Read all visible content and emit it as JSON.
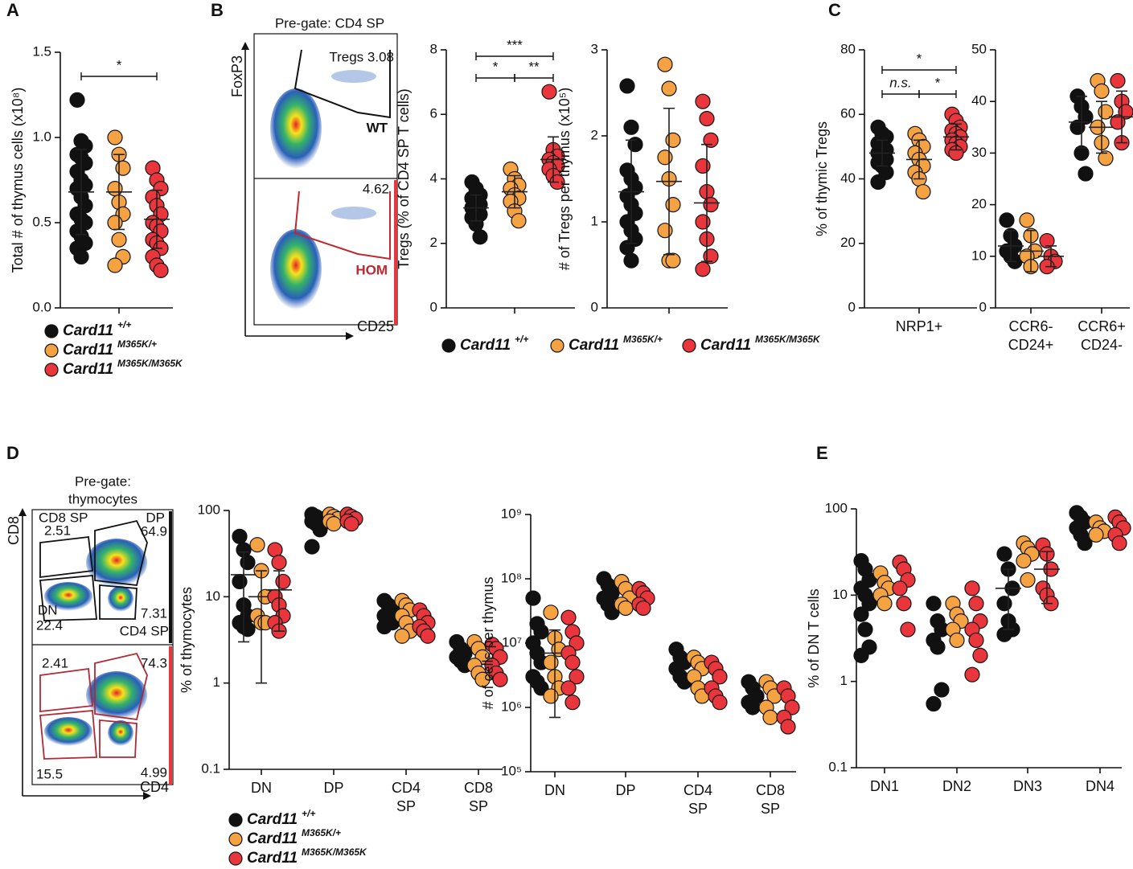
{
  "panels": [
    "A",
    "B",
    "C",
    "D",
    "E"
  ],
  "legend": [
    {
      "name": "Card11",
      "superscript": "+/+",
      "color": "#111111"
    },
    {
      "name": "Card11",
      "superscript": "M365K/+",
      "color": "#f5a242"
    },
    {
      "name": "Card11",
      "superscript": "M365K/M365K",
      "color": "#e8363c"
    }
  ],
  "flow_b": {
    "pregate": "Pre-gate: CD4 SP",
    "yaxis": "FoxP3",
    "xaxis": "CD25",
    "top_gate": "Tregs 3.08",
    "top_label": "WT",
    "bottom_gate": "4.62",
    "bottom_label": "HOM"
  },
  "flow_d": {
    "pregate": [
      "Pre-gate:",
      "thymocytes"
    ],
    "yaxis": "CD8",
    "xaxis": "CD4",
    "top": {
      "cd8_name": "CD8 SP",
      "cd8": "2.51",
      "dp_name": "DP",
      "dp": "64.9",
      "dn_name": "DN",
      "dn": "22.4",
      "cd4": "7.31",
      "cd4_name": "CD4 SP"
    },
    "bottom": {
      "cd8": "2.41",
      "dp": "74.3",
      "dn": "15.5",
      "cd4": "4.99"
    }
  },
  "chart_data": [
    {
      "type": "dot",
      "ylabel": "Total # of thymus cells (x10⁸)",
      "categories": [
        null
      ],
      "ylim": [
        0,
        1.5
      ],
      "yticks": [
        {
          "value": 0,
          "label": "0.0"
        },
        0.5,
        {
          "value": 1,
          "label": "1.0"
        },
        1.5
      ],
      "log": false,
      "series": [
        {
          "color": "#111111",
          "values": [
            [
              1.22,
              0.98,
              0.95,
              0.9,
              0.88,
              0.85,
              0.8,
              0.75,
              0.72,
              0.7,
              0.65,
              0.6,
              0.55,
              0.52,
              0.5,
              0.45,
              0.42,
              0.38,
              0.35,
              0.3
            ]
          ],
          "means": [
            0.68
          ],
          "errors": [
            0.25
          ]
        },
        {
          "color": "#f5a242",
          "values": [
            [
              1.0,
              0.9,
              0.82,
              0.7,
              0.62,
              0.55,
              0.5,
              0.4,
              0.3,
              0.25
            ]
          ],
          "means": [
            0.68
          ],
          "errors": [
            0.22
          ]
        },
        {
          "color": "#e8363c",
          "values": [
            [
              0.82,
              0.75,
              0.7,
              0.65,
              0.6,
              0.55,
              0.5,
              0.48,
              0.45,
              0.4,
              0.38,
              0.35,
              0.3,
              0.25,
              0.22
            ]
          ],
          "means": [
            0.52
          ],
          "errors": [
            0.17
          ]
        }
      ],
      "significance": [
        [
          {
            "label": "*",
            "from": 0,
            "to": 2
          }
        ]
      ]
    },
    {
      "type": "dot",
      "ylabel": "Tregs (% of CD4 SP T cells)",
      "categories": [
        null
      ],
      "ylim": [
        0,
        8
      ],
      "yticks": [
        0,
        2,
        4,
        6,
        8
      ],
      "log": false,
      "series": [
        {
          "color": "#111111",
          "values": [
            [
              3.9,
              3.7,
              3.5,
              3.4,
              3.3,
              3.2,
              3.1,
              3.0,
              2.9,
              2.8,
              2.6,
              2.2
            ]
          ],
          "means": [
            3.1
          ],
          "errors": [
            0.4
          ]
        },
        {
          "color": "#f5a242",
          "values": [
            [
              4.3,
              4.0,
              3.8,
              3.7,
              3.5,
              3.4,
              3.3,
              3.0,
              2.7
            ]
          ],
          "means": [
            3.6
          ],
          "errors": [
            0.5
          ]
        },
        {
          "color": "#e8363c",
          "values": [
            [
              6.7,
              4.9,
              4.7,
              4.6,
              4.5,
              4.4,
              4.3,
              4.1,
              3.9
            ]
          ],
          "means": [
            4.6
          ],
          "errors": [
            0.7
          ]
        }
      ],
      "significance": [
        [
          {
            "label": "***",
            "from": 0,
            "to": 2
          }
        ],
        [
          {
            "label": "*",
            "from": 0,
            "to": 1
          },
          {
            "label": "**",
            "from": 1,
            "to": 2
          }
        ]
      ]
    },
    {
      "type": "dot",
      "ylabel": "# of Tregs per thymus (x10⁵)",
      "categories": [
        null
      ],
      "ylim": [
        0,
        3
      ],
      "yticks": [
        0,
        1,
        2,
        3
      ],
      "log": false,
      "series": [
        {
          "color": "#111111",
          "values": [
            [
              2.58,
              2.1,
              1.9,
              1.6,
              1.5,
              1.4,
              1.3,
              1.2,
              1.1,
              1.0,
              0.9,
              0.8,
              0.7,
              0.55
            ]
          ],
          "means": [
            1.35
          ],
          "errors": [
            0.6
          ]
        },
        {
          "color": "#f5a242",
          "values": [
            [
              2.83,
              2.55,
              1.95,
              1.75,
              1.5,
              1.2,
              0.9,
              0.55,
              0.55
            ]
          ],
          "means": [
            1.47
          ],
          "errors": [
            0.85
          ]
        },
        {
          "color": "#e8363c",
          "values": [
            [
              2.4,
              2.2,
              1.95,
              1.65,
              1.35,
              1.2,
              1.0,
              0.8,
              0.6,
              0.45
            ]
          ],
          "means": [
            1.22
          ],
          "errors": [
            0.68
          ]
        }
      ],
      "significance": []
    },
    {
      "type": "dot",
      "ylabel": "% of thymic Tregs",
      "categories": [
        "NRP1+"
      ],
      "ylim": [
        0,
        80
      ],
      "yticks": [
        0,
        20,
        40,
        60,
        80
      ],
      "log": false,
      "series": [
        {
          "color": "#111111",
          "values": [
            [
              56,
              54,
              53,
              51,
              50,
              49,
              48,
              47,
              46,
              45,
              44,
              42,
              39
            ]
          ],
          "means": [
            48
          ],
          "errors": [
            4
          ]
        },
        {
          "color": "#f5a242",
          "values": [
            [
              54,
              52,
              50,
              48,
              46,
              44,
              42,
              40,
              36
            ]
          ],
          "means": [
            46
          ],
          "errors": [
            6
          ]
        },
        {
          "color": "#e8363c",
          "values": [
            [
              60,
              58,
              56,
              55,
              54,
              53,
              52,
              51,
              50,
              49,
              48
            ]
          ],
          "means": [
            53
          ],
          "errors": [
            4
          ]
        }
      ],
      "significance": [
        [
          {
            "label": "*",
            "from": 0,
            "to": 2
          }
        ],
        [
          {
            "label": "n.s.",
            "from": 0,
            "to": 1
          },
          {
            "label": "*",
            "from": 1,
            "to": 2
          }
        ]
      ]
    },
    {
      "type": "dot",
      "ylabel": null,
      "categories": [
        [
          "CCR6-",
          "CD24+"
        ],
        [
          "CCR6+",
          "CD24-"
        ]
      ],
      "ylim": [
        0,
        50
      ],
      "yticks": [
        0,
        10,
        20,
        30,
        40,
        50
      ],
      "log": false,
      "series": [
        {
          "color": "#111111",
          "values": [
            [
              17,
              14,
              12,
              11,
              10,
              9
            ],
            [
              41,
              39,
              37,
              35,
              30,
              26
            ]
          ],
          "means": [
            12,
            36
          ],
          "errors": [
            3,
            5
          ]
        },
        {
          "color": "#f5a242",
          "values": [
            [
              17,
              14,
              11,
              10,
              8
            ],
            [
              44,
              42,
              38,
              35,
              32,
              29
            ]
          ],
          "means": [
            11,
            35
          ],
          "errors": [
            4,
            5
          ]
        },
        {
          "color": "#e8363c",
          "values": [
            [
              13,
              10,
              9,
              8
            ],
            [
              44,
              40,
              38,
              36,
              32
            ]
          ],
          "means": [
            10,
            37
          ],
          "errors": [
            2,
            5
          ]
        }
      ],
      "significance": []
    },
    {
      "type": "dot",
      "ylabel": "% of thymocytes",
      "categories": [
        "DN",
        "DP",
        [
          "CD4",
          "SP"
        ],
        [
          "CD8",
          "SP"
        ]
      ],
      "ylim": [
        0.1,
        100
      ],
      "yticks": [
        0.1,
        1,
        10,
        100
      ],
      "log": true,
      "series": [
        {
          "color": "#111111",
          "values": [
            [
              50,
              35,
              25,
              15,
              8,
              6,
              5,
              4.5,
              4.2
            ],
            [
              90,
              85,
              80,
              75,
              70,
              60,
              38
            ],
            [
              9,
              8,
              7,
              6,
              5.5,
              5,
              4.5
            ],
            [
              3,
              2.5,
              2.2,
              2,
              1.8,
              1.6
            ]
          ],
          "means": [
            18,
            null,
            null,
            null
          ],
          "errors": [
            15,
            null,
            null,
            null
          ]
        },
        {
          "color": "#f5a242",
          "values": [
            [
              40,
              20,
              10,
              6,
              5,
              5
            ],
            [
              90,
              85,
              80,
              75,
              70
            ],
            [
              9,
              8,
              7,
              6,
              5,
              4,
              3.5
            ],
            [
              3,
              2.5,
              2,
              1.6,
              1.3,
              1.1
            ]
          ],
          "means": [
            10,
            null,
            null,
            null
          ],
          "errors": [
            10,
            null,
            null,
            null
          ]
        },
        {
          "color": "#e8363c",
          "values": [
            [
              35,
              25,
              15,
              10,
              8,
              6,
              5,
              4
            ],
            [
              90,
              85,
              80,
              75,
              70
            ],
            [
              7,
              6,
              5,
              4.5,
              4,
              3.5
            ],
            [
              2.8,
              2.5,
              2,
              1.6,
              1.3,
              1.1
            ]
          ],
          "means": [
            12,
            null,
            null,
            null
          ],
          "errors": [
            8,
            null,
            null,
            null
          ]
        }
      ],
      "significance": []
    },
    {
      "type": "dot",
      "ylabel": "# of cells per thymus",
      "categories": [
        "DN",
        "DP",
        [
          "CD4",
          "SP"
        ],
        [
          "CD8",
          "SP"
        ]
      ],
      "ylim": [
        100000,
        1000000000
      ],
      "yticks": [
        {
          "value": 100000,
          "label": "10⁵"
        },
        {
          "value": 1000000,
          "label": "10⁶"
        },
        {
          "value": 10000000,
          "label": "10⁷"
        },
        {
          "value": 100000000,
          "label": "10⁸"
        },
        {
          "value": 1000000000,
          "label": "10⁹"
        }
      ],
      "log": true,
      "series": [
        {
          "color": "#111111",
          "values": [
            [
              50000000,
              20000000,
              15000000,
              10000000,
              7000000,
              5000000,
              3000000,
              2500000,
              2000000
            ],
            [
              100000000,
              80000000,
              60000000,
              50000000,
              40000000,
              30000000
            ],
            [
              8000000,
              6000000,
              5000000,
              4000000,
              3000000,
              2500000
            ],
            [
              2500000,
              2000000,
              1500000,
              1200000,
              1000000
            ]
          ],
          "means": [
            null,
            null,
            null,
            null
          ],
          "errors": [
            null,
            null,
            null,
            null
          ]
        },
        {
          "color": "#f5a242",
          "values": [
            [
              30000000,
              12000000,
              8000000,
              5000000,
              3000000,
              2000000,
              1500000
            ],
            [
              90000000,
              70000000,
              50000000,
              40000000,
              35000000
            ],
            [
              6000000,
              5000000,
              4000000,
              3000000,
              2000000,
              1500000
            ],
            [
              2500000,
              2000000,
              1500000,
              1000000,
              700000
            ]
          ],
          "means": [
            7000000,
            null,
            null,
            null
          ],
          "errors": [
            9000000,
            null,
            null,
            null
          ]
        },
        {
          "color": "#e8363c",
          "values": [
            [
              25000000,
              15000000,
              10000000,
              7000000,
              5000000,
              3000000,
              2000000,
              1200000
            ],
            [
              70000000,
              60000000,
              50000000,
              40000000,
              35000000
            ],
            [
              5000000,
              4000000,
              3000000,
              2000000,
              1500000,
              1200000
            ],
            [
              2000000,
              1500000,
              1000000,
              700000,
              500000
            ]
          ],
          "means": [
            null,
            null,
            null,
            null
          ],
          "errors": [
            null,
            null,
            null,
            null
          ]
        }
      ],
      "significance": []
    },
    {
      "type": "dot",
      "ylabel": "% of DN T cells",
      "categories": [
        "DN1",
        "DN2",
        "DN3",
        "DN4"
      ],
      "ylim": [
        0.1,
        100
      ],
      "yticks": [
        0.1,
        1,
        10,
        100
      ],
      "log": true,
      "series": [
        {
          "color": "#111111",
          "values": [
            [
              25,
              20,
              15,
              12,
              10,
              8,
              6,
              4,
              2.5,
              2
            ],
            [
              8,
              5,
              4,
              3,
              2.5,
              0.8,
              0.55
            ],
            [
              30,
              20,
              12,
              8,
              5,
              4,
              3.5
            ],
            [
              90,
              80,
              70,
              60,
              50,
              40
            ]
          ],
          "means": [
            null,
            null,
            12,
            null
          ],
          "errors": [
            null,
            null,
            8,
            null
          ]
        },
        {
          "color": "#f5a242",
          "values": [
            [
              18,
              14,
              12,
              10,
              8
            ],
            [
              8,
              6,
              5,
              4,
              3
            ],
            [
              40,
              35,
              30,
              25,
              15
            ],
            [
              70,
              60,
              55,
              50
            ]
          ],
          "means": [
            null,
            null,
            null,
            null
          ],
          "errors": [
            null,
            null,
            null,
            null
          ]
        },
        {
          "color": "#e8363c",
          "values": [
            [
              24,
              20,
              15,
              12,
              8,
              4
            ],
            [
              12,
              8,
              5,
              4,
              3,
              2,
              1.2
            ],
            [
              38,
              30,
              20,
              12,
              10,
              8
            ],
            [
              80,
              70,
              60,
              50,
              40
            ]
          ],
          "means": [
            null,
            null,
            20,
            null
          ],
          "errors": [
            null,
            null,
            12,
            null
          ]
        }
      ],
      "significance": []
    }
  ]
}
